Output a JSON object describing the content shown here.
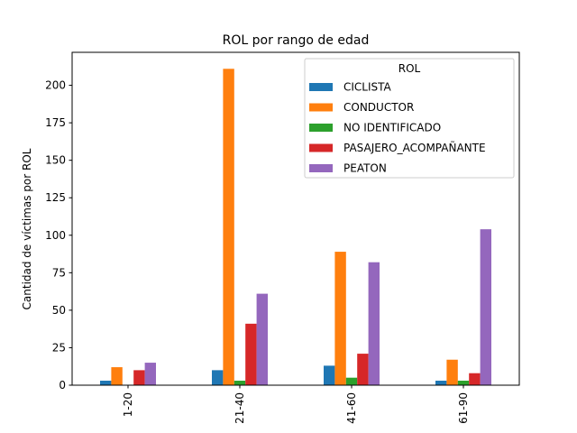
{
  "chart_data": {
    "type": "bar",
    "title": "ROL por rango de edad",
    "xlabel": "",
    "ylabel": "Cantidad de víctimas por ROL",
    "categories": [
      "1-20",
      "21-40",
      "41-60",
      "61-90"
    ],
    "ylim": [
      0,
      222
    ],
    "yticks": [
      0,
      25,
      50,
      75,
      100,
      125,
      150,
      175,
      200
    ],
    "grid": false,
    "legend": {
      "title": "ROL",
      "placement": "upper-right"
    },
    "series": [
      {
        "name": "CICLISTA",
        "color": "#1f77b4",
        "values": [
          3,
          10,
          13,
          3
        ]
      },
      {
        "name": "CONDUCTOR",
        "color": "#ff7f0e",
        "values": [
          12,
          211,
          89,
          17
        ]
      },
      {
        "name": "NO IDENTIFICADO",
        "color": "#2ca02c",
        "values": [
          0,
          3,
          5,
          3
        ]
      },
      {
        "name": "PASAJERO_ACOMPAÑANTE",
        "color": "#d62728",
        "values": [
          10,
          41,
          21,
          8
        ]
      },
      {
        "name": "PEATON",
        "color": "#9467bd",
        "values": [
          15,
          61,
          82,
          104
        ]
      }
    ]
  }
}
